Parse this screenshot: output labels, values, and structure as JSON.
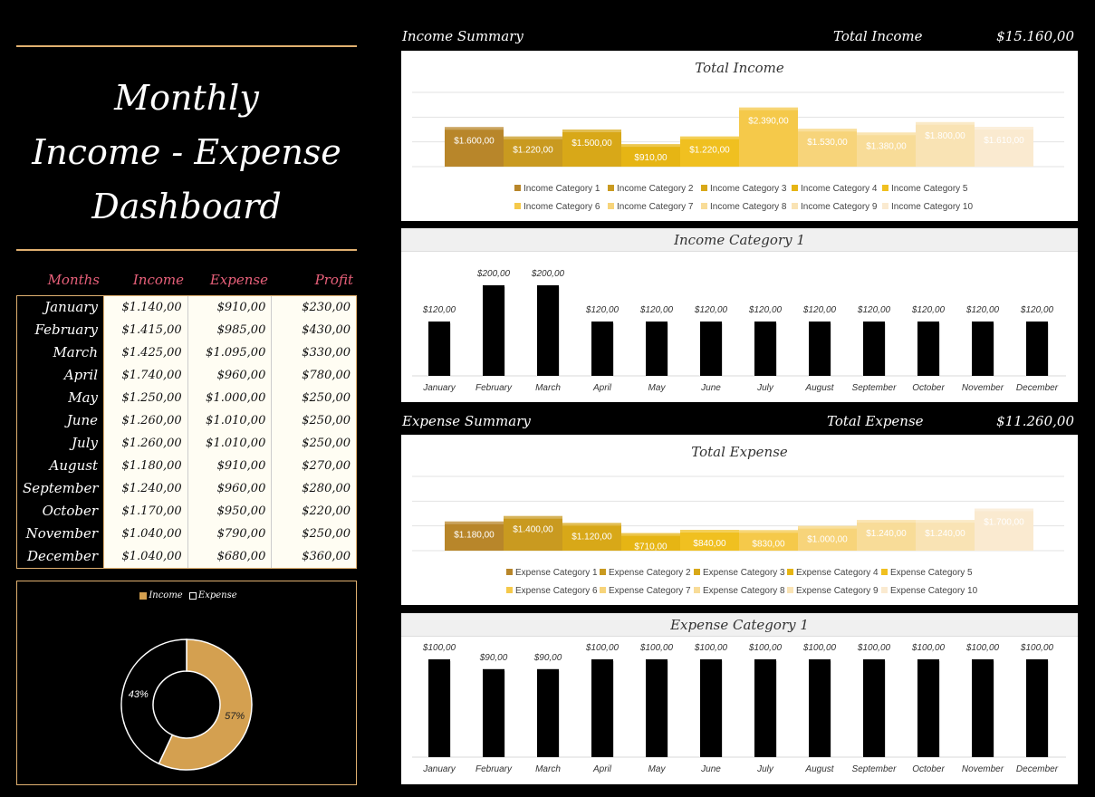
{
  "dashboard": {
    "title_lines": [
      "Monthly",
      "Income - Expense",
      "Dashboard"
    ]
  },
  "table": {
    "headers": [
      "Months",
      "Income",
      "Expense",
      "Profit"
    ],
    "months": [
      "January",
      "February",
      "March",
      "April",
      "May",
      "June",
      "July",
      "August",
      "September",
      "October",
      "November",
      "December"
    ],
    "income": [
      "$1.140,00",
      "$1.415,00",
      "$1.425,00",
      "$1.740,00",
      "$1.250,00",
      "$1.260,00",
      "$1.260,00",
      "$1.180,00",
      "$1.240,00",
      "$1.170,00",
      "$1.040,00",
      "$1.040,00"
    ],
    "expense": [
      "$910,00",
      "$985,00",
      "$1.095,00",
      "$960,00",
      "$1.000,00",
      "$1.010,00",
      "$1.010,00",
      "$910,00",
      "$960,00",
      "$950,00",
      "$790,00",
      "$680,00"
    ],
    "profit": [
      "$230,00",
      "$430,00",
      "$330,00",
      "$780,00",
      "$250,00",
      "$250,00",
      "$250,00",
      "$270,00",
      "$280,00",
      "$220,00",
      "$250,00",
      "$360,00"
    ]
  },
  "donut": {
    "legend": [
      "Income",
      "Expense"
    ],
    "income_pct_label": "57%",
    "expense_pct_label": "43%",
    "income_share": 0.57,
    "colors": {
      "income": "#d4a050",
      "expense": "#000000"
    }
  },
  "income_summary": {
    "label": "Income Summary",
    "total_label": "Total Income",
    "total_value": "$15.160,00"
  },
  "expense_summary": {
    "label": "Expense Summary",
    "total_label": "Total Expense",
    "total_value": "$11.260,00"
  },
  "palette": [
    "#b8862a",
    "#c99a20",
    "#d8a818",
    "#e6b514",
    "#f0c020",
    "#f5c94a",
    "#f7d47a",
    "#f8dc98",
    "#f9e3b4",
    "#faead0"
  ],
  "chart_data": [
    {
      "type": "bar",
      "title": "Total Income",
      "categories": [
        "Income Category 1",
        "Income Category 2",
        "Income Category 3",
        "Income Category 4",
        "Income Category 5",
        "Income Category 6",
        "Income Category 7",
        "Income Category 8",
        "Income Category 9",
        "Income Category 10"
      ],
      "values": [
        1600,
        1220,
        1500,
        910,
        1220,
        2390,
        1530,
        1380,
        1800,
        1610
      ],
      "value_labels": [
        "$1.600,00",
        "$1.220,00",
        "$1.500,00",
        "$910,00",
        "$1.220,00",
        "$2.390,00",
        "$1.530,00",
        "$1.380,00",
        "$1.800,00",
        "$1.610,00"
      ],
      "legend_placement": "bottom"
    },
    {
      "type": "bar",
      "title": "Income Category 1",
      "categories": [
        "January",
        "February",
        "March",
        "April",
        "May",
        "June",
        "July",
        "August",
        "September",
        "October",
        "November",
        "December"
      ],
      "values": [
        120,
        200,
        200,
        120,
        120,
        120,
        120,
        120,
        120,
        120,
        120,
        120
      ],
      "value_labels": [
        "$120,00",
        "$200,00",
        "$200,00",
        "$120,00",
        "$120,00",
        "$120,00",
        "$120,00",
        "$120,00",
        "$120,00",
        "$120,00",
        "$120,00",
        "$120,00"
      ]
    },
    {
      "type": "bar",
      "title": "Total Expense",
      "categories": [
        "Expense Category 1",
        "Expense Category 2",
        "Expense Category 3",
        "Expense Category 4",
        "Expense Category 5",
        "Expense Category 6",
        "Expense Category 7",
        "Expense Category 8",
        "Expense Category 9",
        "Expense Category 10"
      ],
      "values": [
        1180,
        1400,
        1120,
        710,
        840,
        830,
        1000,
        1240,
        1240,
        1700
      ],
      "value_labels": [
        "$1.180,00",
        "$1.400,00",
        "$1.120,00",
        "$710,00",
        "$840,00",
        "$830,00",
        "$1.000,00",
        "$1.240,00",
        "$1.240,00",
        "$1.700,00"
      ],
      "legend_placement": "bottom"
    },
    {
      "type": "bar",
      "title": "Expense Category 1",
      "categories": [
        "January",
        "February",
        "March",
        "April",
        "May",
        "June",
        "July",
        "August",
        "September",
        "October",
        "November",
        "December"
      ],
      "values": [
        100,
        90,
        90,
        100,
        100,
        100,
        100,
        100,
        100,
        100,
        100,
        100
      ],
      "value_labels": [
        "$100,00",
        "$90,00",
        "$90,00",
        "$100,00",
        "$100,00",
        "$100,00",
        "$100,00",
        "$100,00",
        "$100,00",
        "$100,00",
        "$100,00",
        "$100,00"
      ]
    }
  ]
}
